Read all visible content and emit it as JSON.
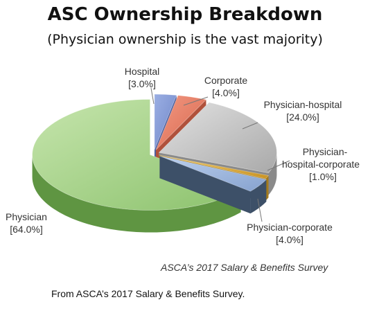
{
  "title": "ASC Ownership Breakdown",
  "subtitle": "(Physician ownership is the vast majority)",
  "chart_data": {
    "type": "pie",
    "categories": [
      "Hospital",
      "Corporate",
      "Physician-hospital",
      "Physician-hospital-corporate",
      "Physician-corporate",
      "Physician"
    ],
    "values": [
      3.0,
      4.0,
      24.0,
      1.0,
      4.0,
      64.0
    ],
    "labels": [
      {
        "name": "Hospital",
        "value": "[3.0%]"
      },
      {
        "name": "Corporate",
        "value": "[4.0%]"
      },
      {
        "name": "Physician-hospital",
        "value": "[24.0%]"
      },
      {
        "name_lines": [
          "Physician-",
          "hospital-corporate"
        ],
        "value": "[1.0%]"
      },
      {
        "name": "Physician-corporate",
        "value": "[4.0%]"
      },
      {
        "name": "Physician",
        "value": "[64.0%]"
      }
    ],
    "colors": [
      "#7f94d1",
      "#e9826a",
      "#c6c6c6",
      "#e3b23c",
      "#9fb8e0",
      "#a5d28a"
    ],
    "style": "3d-exploded"
  },
  "source": "ASCA’s 2017 Salary & Benefits Survey",
  "caption": "From ASCA’s 2017 Salary & Benefits Survey."
}
